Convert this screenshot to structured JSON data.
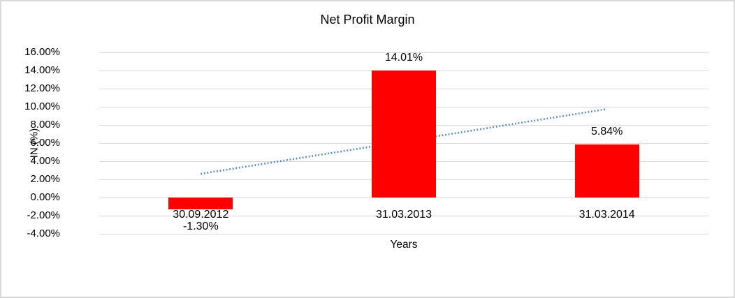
{
  "window": {
    "background_color": "#FFFFFF",
    "border_color": "#D9D9D9"
  },
  "chart_data": {
    "type": "bar",
    "title": "Net Profit Margin",
    "xlabel": "Years",
    "ylabel": "IN (%)",
    "categories": [
      "30.09.2012",
      "31.03.2013",
      "31.03.2014"
    ],
    "values": [
      -1.3,
      14.01,
      5.84
    ],
    "data_labels": [
      "-1.30%",
      "14.01%",
      "5.84%"
    ],
    "ylim": [
      -4,
      16
    ],
    "ytick_step": 2,
    "ytick_labels": [
      "16.00%",
      "14.00%",
      "12.00%",
      "10.00%",
      "8.00%",
      "6.00%",
      "4.00%",
      "2.00%",
      "0.00%",
      "-2.00%",
      "-4.00%"
    ],
    "grid": true,
    "gridline_color": "#D9D9D9",
    "bar_color": "#FF0000",
    "text_color": "#000000",
    "legend_position": "none",
    "trendline": {
      "type": "linear",
      "style": "dotted",
      "color": "#4E87C8",
      "start_value": 2.61,
      "end_value": 9.75
    }
  }
}
